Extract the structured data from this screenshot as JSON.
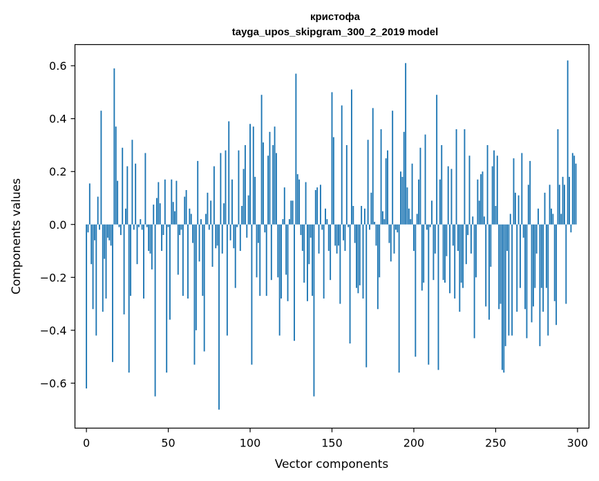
{
  "chart_data": {
    "type": "bar",
    "title": "кристофа",
    "subtitle": "tayga_upos_skipgram_300_2_2019 model",
    "xlabel": "Vector components",
    "ylabel": "Components values",
    "xlim": [
      -7,
      307
    ],
    "ylim": [
      -0.77,
      0.68
    ],
    "xticks": [
      0,
      50,
      100,
      150,
      200,
      250,
      300
    ],
    "xtick_labels": [
      "0",
      "50",
      "100",
      "150",
      "200",
      "250",
      "300"
    ],
    "yticks": [
      -0.6,
      -0.4,
      -0.2,
      0.0,
      0.2,
      0.4,
      0.6
    ],
    "ytick_labels": [
      "−0.6",
      "−0.4",
      "−0.2",
      "0.0",
      "0.2",
      "0.4",
      "0.6"
    ],
    "grid": false,
    "bar_color": "#1f77b4",
    "x": [
      0,
      1,
      2,
      3,
      4,
      5,
      6,
      7,
      8,
      9,
      10,
      11,
      12,
      13,
      14,
      15,
      16,
      17,
      18,
      19,
      20,
      21,
      22,
      23,
      24,
      25,
      26,
      27,
      28,
      29,
      30,
      31,
      32,
      33,
      34,
      35,
      36,
      37,
      38,
      39,
      40,
      41,
      42,
      43,
      44,
      45,
      46,
      47,
      48,
      49,
      50,
      51,
      52,
      53,
      54,
      55,
      56,
      57,
      58,
      59,
      60,
      61,
      62,
      63,
      64,
      65,
      66,
      67,
      68,
      69,
      70,
      71,
      72,
      73,
      74,
      75,
      76,
      77,
      78,
      79,
      80,
      81,
      82,
      83,
      84,
      85,
      86,
      87,
      88,
      89,
      90,
      91,
      92,
      93,
      94,
      95,
      96,
      97,
      98,
      99,
      100,
      101,
      102,
      103,
      104,
      105,
      106,
      107,
      108,
      109,
      110,
      111,
      112,
      113,
      114,
      115,
      116,
      117,
      118,
      119,
      120,
      121,
      122,
      123,
      124,
      125,
      126,
      127,
      128,
      129,
      130,
      131,
      132,
      133,
      134,
      135,
      136,
      137,
      138,
      139,
      140,
      141,
      142,
      143,
      144,
      145,
      146,
      147,
      148,
      149,
      150,
      151,
      152,
      153,
      154,
      155,
      156,
      157,
      158,
      159,
      160,
      161,
      162,
      163,
      164,
      165,
      166,
      167,
      168,
      169,
      170,
      171,
      172,
      173,
      174,
      175,
      176,
      177,
      178,
      179,
      180,
      181,
      182,
      183,
      184,
      185,
      186,
      187,
      188,
      189,
      190,
      191,
      192,
      193,
      194,
      195,
      196,
      197,
      198,
      199,
      200,
      201,
      202,
      203,
      204,
      205,
      206,
      207,
      208,
      209,
      210,
      211,
      212,
      213,
      214,
      215,
      216,
      217,
      218,
      219,
      220,
      221,
      222,
      223,
      224,
      225,
      226,
      227,
      228,
      229,
      230,
      231,
      232,
      233,
      234,
      235,
      236,
      237,
      238,
      239,
      240,
      241,
      242,
      243,
      244,
      245,
      246,
      247,
      248,
      249,
      250,
      251,
      252,
      253,
      254,
      255,
      256,
      257,
      258,
      259,
      260,
      261,
      262,
      263,
      264,
      265,
      266,
      267,
      268,
      269,
      270,
      271,
      272,
      273,
      274,
      275,
      276,
      277,
      278,
      279,
      280,
      281,
      282,
      283,
      284,
      285,
      286,
      287,
      288,
      289,
      290,
      291,
      292,
      293,
      294,
      295,
      296,
      297,
      298,
      299
    ],
    "values": [
      -0.62,
      -0.03,
      0.155,
      -0.15,
      -0.32,
      -0.06,
      -0.42,
      0.105,
      -0.02,
      0.43,
      -0.33,
      -0.13,
      -0.28,
      -0.05,
      -0.06,
      -0.08,
      -0.52,
      0.59,
      0.37,
      0.165,
      -0.01,
      -0.04,
      0.29,
      -0.34,
      0.06,
      0.22,
      -0.56,
      -0.27,
      0.32,
      -0.02,
      0.23,
      -0.15,
      -0.01,
      0.02,
      -0.02,
      -0.28,
      0.27,
      -0.01,
      -0.1,
      -0.11,
      -0.17,
      0.075,
      -0.65,
      0.1,
      0.16,
      0.08,
      -0.1,
      -0.04,
      0.17,
      -0.56,
      -0.01,
      -0.36,
      0.17,
      0.085,
      0.05,
      0.165,
      -0.19,
      -0.04,
      -0.02,
      -0.27,
      0.105,
      0.13,
      -0.28,
      0.06,
      0.04,
      -0.07,
      -0.53,
      -0.4,
      0.24,
      -0.14,
      0.02,
      -0.27,
      -0.48,
      0.04,
      0.12,
      -0.02,
      0.09,
      -0.16,
      0.22,
      -0.09,
      -0.08,
      -0.7,
      0.27,
      -0.11,
      0.08,
      0.28,
      -0.42,
      0.39,
      -0.06,
      0.17,
      -0.09,
      -0.24,
      -0.01,
      0.28,
      -0.1,
      0.07,
      0.21,
      0.3,
      -0.05,
      0.11,
      0.38,
      -0.53,
      0.37,
      0.18,
      -0.2,
      -0.07,
      -0.27,
      0.49,
      0.31,
      -0.03,
      -0.27,
      0.26,
      0.35,
      -0.21,
      0.3,
      0.37,
      0.27,
      -0.2,
      -0.42,
      -0.28,
      0.02,
      0.14,
      -0.19,
      -0.29,
      0.02,
      0.09,
      0.09,
      -0.44,
      0.57,
      0.19,
      0.17,
      -0.04,
      -0.1,
      -0.22,
      0.16,
      -0.29,
      -0.15,
      -0.05,
      -0.27,
      -0.65,
      0.13,
      0.14,
      -0.11,
      0.15,
      -0.02,
      -0.28,
      0.06,
      0.02,
      -0.1,
      -0.21,
      0.5,
      0.33,
      -0.08,
      -0.11,
      -0.08,
      -0.3,
      0.45,
      -0.06,
      -0.1,
      0.3,
      -0.01,
      -0.45,
      0.51,
      0.07,
      -0.07,
      -0.24,
      -0.26,
      -0.23,
      0.07,
      -0.28,
      0.06,
      -0.54,
      0.32,
      -0.02,
      0.12,
      0.44,
      0.01,
      -0.08,
      -0.32,
      -0.2,
      0.36,
      0.05,
      0.02,
      0.25,
      0.28,
      -0.07,
      -0.14,
      0.43,
      -0.11,
      -0.02,
      -0.03,
      -0.56,
      0.2,
      0.18,
      0.35,
      0.61,
      0.14,
      0.06,
      0.02,
      0.23,
      -0.1,
      -0.5,
      0.04,
      0.17,
      0.29,
      -0.25,
      -0.22,
      0.34,
      -0.02,
      -0.53,
      -0.01,
      0.09,
      -0.21,
      -0.11,
      0.49,
      -0.55,
      0.17,
      0.3,
      -0.21,
      -0.22,
      -0.12,
      0.22,
      -0.26,
      0.21,
      -0.08,
      -0.28,
      0.36,
      -0.1,
      -0.33,
      -0.22,
      -0.24,
      0.36,
      -0.15,
      -0.04,
      0.26,
      -0.11,
      0.03,
      -0.43,
      -0.2,
      0.17,
      0.09,
      0.19,
      0.2,
      0.03,
      -0.31,
      0.3,
      -0.36,
      -0.16,
      0.22,
      0.28,
      0.07,
      0.26,
      -0.32,
      -0.3,
      -0.55,
      -0.56,
      -0.46,
      -0.1,
      -0.42,
      0.04,
      -0.42,
      0.25,
      0.12,
      -0.33,
      0.11,
      -0.24,
      0.27,
      -0.05,
      -0.32,
      -0.43,
      0.15,
      0.24,
      -0.37,
      -0.31,
      -0.24,
      -0.11,
      0.06,
      -0.46,
      -0.24,
      -0.33,
      0.12,
      -0.24,
      -0.42,
      0.15,
      0.06,
      0.04,
      -0.29,
      -0.38,
      0.36,
      0.15,
      0.04,
      0.18,
      0.15,
      -0.3,
      0.62,
      0.18,
      -0.03,
      0.27,
      0.26,
      0.23
    ]
  }
}
